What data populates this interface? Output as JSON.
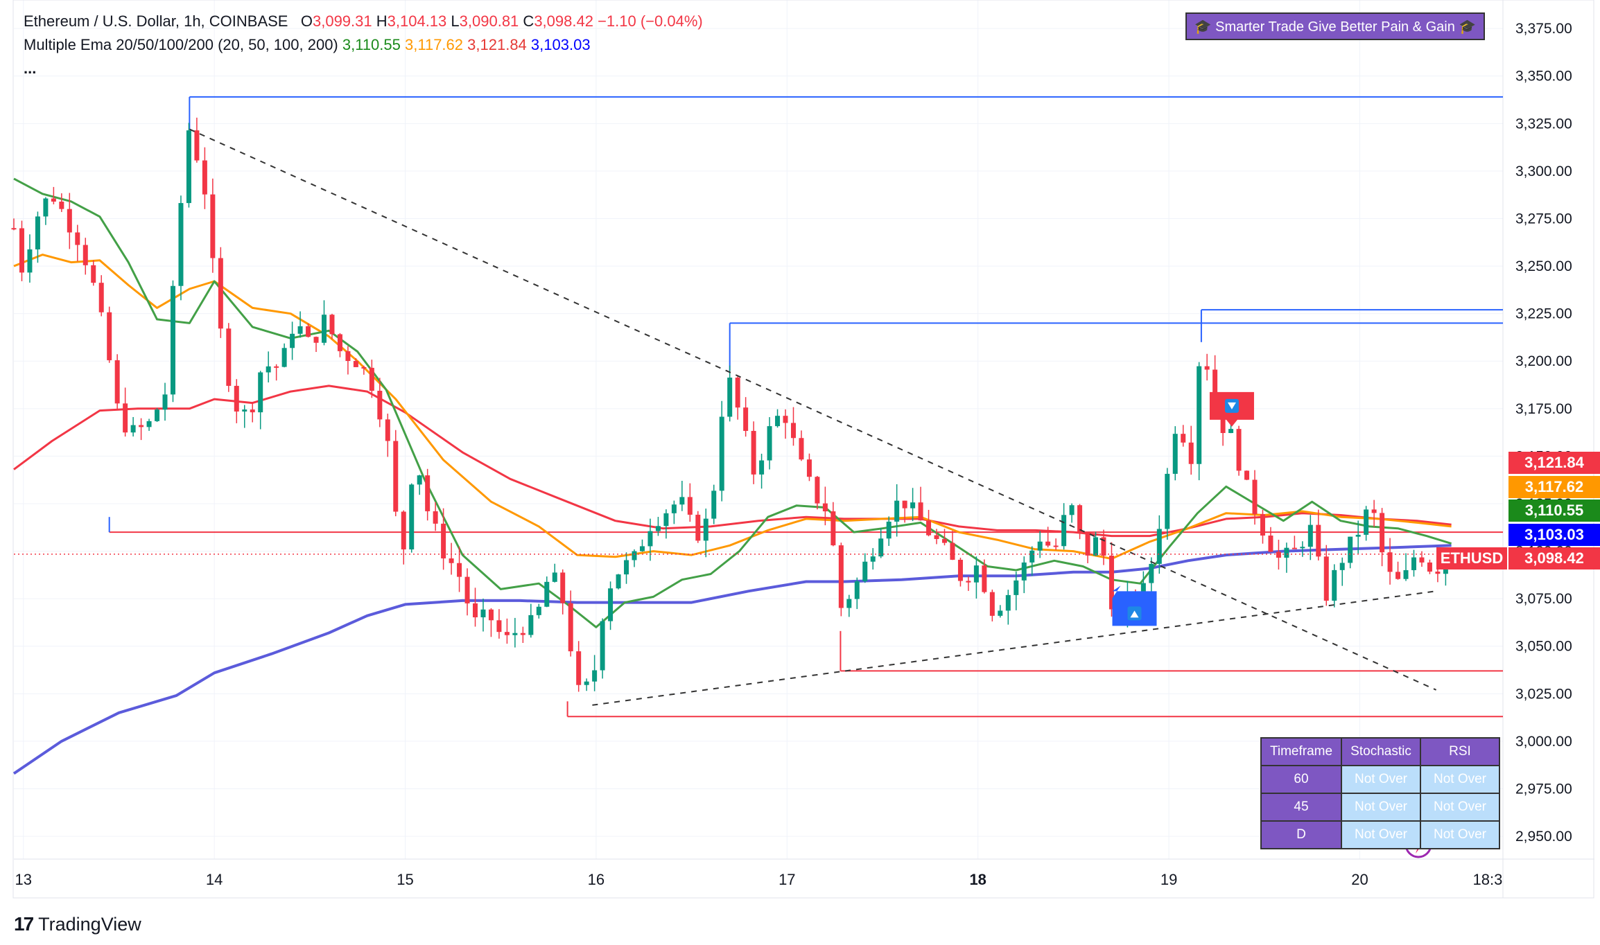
{
  "header": {
    "symbol": "Ethereum / U.S. Dollar, 1h, COINBASE",
    "o_label": "O",
    "o_val": "3,099.31",
    "h_label": "H",
    "h_val": "3,104.13",
    "l_label": "L",
    "l_val": "3,090.81",
    "c_label": "C",
    "c_val": "3,098.42",
    "change": "−1.10 (−0.04%)",
    "indicator": "Multiple Ema 20/50/100/200 (20, 50, 100, 200)",
    "ema20": "3,110.55",
    "ema50": "3,117.62",
    "ema100": "3,121.84",
    "ema200": "3,103.03",
    "more": "..."
  },
  "banner": {
    "text": "🎓 Smarter Trade Give Better Pain & Gain 🎓"
  },
  "price_tags": [
    {
      "label": "3,121.84",
      "color": "#f23645"
    },
    {
      "label": "3,117.62",
      "color": "#ff9800"
    },
    {
      "label": "3,110.55",
      "color": "#1b8a1b"
    },
    {
      "label": "3,103.03",
      "color": "#0000ff"
    },
    {
      "label": "ETHUSD",
      "value": "3,098.42",
      "color": "#f23645"
    }
  ],
  "table": {
    "headers": [
      "Timeframe",
      "Stochastic",
      "RSI"
    ],
    "rows": [
      {
        "tf": "60",
        "stoch": "Not Over",
        "rsi": "Not Over"
      },
      {
        "tf": "45",
        "stoch": "Not Over",
        "rsi": "Not Over"
      },
      {
        "tf": "D",
        "stoch": "Not Over",
        "rsi": "Not Over"
      }
    ]
  },
  "footer": {
    "brand": "TradingView",
    "logo": "17"
  },
  "colors": {
    "up": "#089981",
    "down": "#f23645",
    "ema20": "#43a047",
    "ema50": "#ff9800",
    "ema100": "#f23645",
    "ema200": "#5b5bdb",
    "hline_blue": "#2962ff",
    "hline_red": "#f23645"
  },
  "chart_data": {
    "type": "candlestick",
    "title": "Ethereum / U.S. Dollar, 1h, COINBASE",
    "ylim": [
      2938,
      3390
    ],
    "y_ticks": [
      2950,
      2975,
      3000,
      3025,
      3050,
      3075,
      3100,
      3125,
      3150,
      3175,
      3200,
      3225,
      3250,
      3275,
      3300,
      3325,
      3350,
      3375
    ],
    "y_tick_labels": [
      "2,950.00",
      "2,975.00",
      "3,000.00",
      "3,025.00",
      "3,050.00",
      "3,075.00",
      "3,100.00",
      "3,125.00",
      "3,150.00",
      "3,175.00",
      "3,200.00",
      "3,225.00",
      "3,250.00",
      "3,275.00",
      "3,300.00",
      "3,325.00",
      "3,350.00",
      "3,375.00"
    ],
    "x_range_days": [
      12.95,
      20.75
    ],
    "x_ticks": [
      13,
      14,
      15,
      16,
      17,
      18,
      19,
      20
    ],
    "x_tick_labels": [
      "13",
      "14",
      "15",
      "16",
      "17",
      "18",
      "19",
      "20"
    ],
    "x_tick_bold": [
      false,
      false,
      false,
      false,
      false,
      true,
      false,
      false
    ],
    "x_extra_label": {
      "day": 20.67,
      "label": "18:3"
    },
    "last_price": 3098.42,
    "hlines": [
      {
        "from": 13.87,
        "to": 20.75,
        "y": 3339,
        "color": "blue"
      },
      {
        "from": 16.7,
        "to": 20.75,
        "y": 3220,
        "color": "blue"
      },
      {
        "from": 19.17,
        "to": 20.75,
        "y": 3227,
        "color": "blue"
      },
      {
        "from": 13.45,
        "to": 20.75,
        "y": 3110,
        "color": "red"
      },
      {
        "from": 17.28,
        "to": 20.75,
        "y": 3037,
        "color": "red"
      },
      {
        "from": 15.85,
        "to": 20.75,
        "y": 3013,
        "color": "red"
      }
    ],
    "vlines": [
      {
        "day": 13.87,
        "y1": 3322,
        "y2": 3339
      },
      {
        "day": 16.7,
        "y1": 3195,
        "y2": 3220
      },
      {
        "day": 19.17,
        "y1": 3210,
        "y2": 3227
      },
      {
        "day": 13.45,
        "y1": 3110,
        "y2": 3118
      },
      {
        "day": 17.28,
        "y1": 3037,
        "y2": 3058
      },
      {
        "day": 15.85,
        "y1": 3013,
        "y2": 3021
      }
    ],
    "trendlines": [
      {
        "x1": 13.87,
        "y1": 3322,
        "x2": 20.4,
        "y2": 3027
      },
      {
        "x1": 15.98,
        "y1": 3019,
        "x2": 20.4,
        "y2": 3079
      }
    ],
    "signals": [
      {
        "type": "sell",
        "day": 19.33,
        "price": 3175
      },
      {
        "type": "buy",
        "day": 18.82,
        "price": 3068
      }
    ],
    "ema_series": [
      {
        "name": "EMA 20",
        "points": [
          [
            12.95,
            3296
          ],
          [
            13.1,
            3288
          ],
          [
            13.25,
            3284
          ],
          [
            13.4,
            3276
          ],
          [
            13.55,
            3252
          ],
          [
            13.7,
            3222
          ],
          [
            13.87,
            3220
          ],
          [
            14.0,
            3242
          ],
          [
            14.2,
            3218
          ],
          [
            14.4,
            3212
          ],
          [
            14.6,
            3216
          ],
          [
            14.75,
            3205
          ],
          [
            14.9,
            3185
          ],
          [
            15.1,
            3138
          ],
          [
            15.3,
            3098
          ],
          [
            15.5,
            3080
          ],
          [
            15.7,
            3083
          ],
          [
            15.85,
            3072
          ],
          [
            16.0,
            3060
          ],
          [
            16.15,
            3073
          ],
          [
            16.3,
            3076
          ],
          [
            16.45,
            3085
          ],
          [
            16.6,
            3088
          ],
          [
            16.75,
            3100
          ],
          [
            16.9,
            3118
          ],
          [
            17.05,
            3124
          ],
          [
            17.2,
            3123
          ],
          [
            17.35,
            3110
          ],
          [
            17.5,
            3112
          ],
          [
            17.7,
            3115
          ],
          [
            17.9,
            3102
          ],
          [
            18.05,
            3092
          ],
          [
            18.2,
            3090
          ],
          [
            18.4,
            3095
          ],
          [
            18.55,
            3092
          ],
          [
            18.7,
            3085
          ],
          [
            18.85,
            3083
          ],
          [
            19.0,
            3102
          ],
          [
            19.15,
            3120
          ],
          [
            19.3,
            3134
          ],
          [
            19.45,
            3125
          ],
          [
            19.6,
            3116
          ],
          [
            19.75,
            3126
          ],
          [
            19.9,
            3116
          ],
          [
            20.05,
            3113
          ],
          [
            20.2,
            3112
          ],
          [
            20.35,
            3108
          ],
          [
            20.48,
            3104
          ]
        ]
      },
      {
        "name": "EMA 50",
        "points": [
          [
            12.95,
            3250
          ],
          [
            13.1,
            3256
          ],
          [
            13.25,
            3252
          ],
          [
            13.4,
            3253
          ],
          [
            13.55,
            3240
          ],
          [
            13.7,
            3228
          ],
          [
            13.87,
            3238
          ],
          [
            14.0,
            3242
          ],
          [
            14.2,
            3228
          ],
          [
            14.4,
            3225
          ],
          [
            14.6,
            3213
          ],
          [
            14.75,
            3200
          ],
          [
            14.95,
            3180
          ],
          [
            15.2,
            3148
          ],
          [
            15.45,
            3126
          ],
          [
            15.7,
            3113
          ],
          [
            15.9,
            3098
          ],
          [
            16.1,
            3097
          ],
          [
            16.3,
            3100
          ],
          [
            16.5,
            3098
          ],
          [
            16.7,
            3103
          ],
          [
            16.9,
            3111
          ],
          [
            17.1,
            3117
          ],
          [
            17.3,
            3116
          ],
          [
            17.5,
            3117
          ],
          [
            17.7,
            3118
          ],
          [
            17.9,
            3110
          ],
          [
            18.1,
            3106
          ],
          [
            18.3,
            3101
          ],
          [
            18.5,
            3100
          ],
          [
            18.7,
            3096
          ],
          [
            18.9,
            3105
          ],
          [
            19.1,
            3112
          ],
          [
            19.3,
            3120
          ],
          [
            19.5,
            3119
          ],
          [
            19.7,
            3121
          ],
          [
            19.9,
            3118
          ],
          [
            20.1,
            3117
          ],
          [
            20.3,
            3115
          ],
          [
            20.48,
            3113
          ]
        ]
      },
      {
        "name": "EMA 100",
        "points": [
          [
            12.95,
            3143
          ],
          [
            13.15,
            3158
          ],
          [
            13.4,
            3174
          ],
          [
            13.6,
            3175
          ],
          [
            13.87,
            3175
          ],
          [
            14.0,
            3180
          ],
          [
            14.2,
            3178
          ],
          [
            14.4,
            3184
          ],
          [
            14.6,
            3187
          ],
          [
            14.8,
            3184
          ],
          [
            15.0,
            3173
          ],
          [
            15.3,
            3152
          ],
          [
            15.55,
            3138
          ],
          [
            15.8,
            3128
          ],
          [
            16.1,
            3116
          ],
          [
            16.35,
            3112
          ],
          [
            16.6,
            3113
          ],
          [
            16.85,
            3116
          ],
          [
            17.1,
            3118
          ],
          [
            17.3,
            3117
          ],
          [
            17.5,
            3117
          ],
          [
            17.7,
            3117
          ],
          [
            17.9,
            3113
          ],
          [
            18.1,
            3111
          ],
          [
            18.3,
            3111
          ],
          [
            18.5,
            3110
          ],
          [
            18.7,
            3108
          ],
          [
            18.9,
            3108
          ],
          [
            19.1,
            3112
          ],
          [
            19.3,
            3117
          ],
          [
            19.5,
            3118
          ],
          [
            19.7,
            3120
          ],
          [
            19.9,
            3119
          ],
          [
            20.1,
            3117
          ],
          [
            20.3,
            3116
          ],
          [
            20.48,
            3114
          ]
        ]
      },
      {
        "name": "EMA 200",
        "points": [
          [
            12.95,
            2983
          ],
          [
            13.2,
            3000
          ],
          [
            13.5,
            3015
          ],
          [
            13.8,
            3024
          ],
          [
            14.0,
            3036
          ],
          [
            14.3,
            3046
          ],
          [
            14.6,
            3057
          ],
          [
            14.8,
            3066
          ],
          [
            15.0,
            3072
          ],
          [
            15.3,
            3074
          ],
          [
            15.6,
            3074
          ],
          [
            15.9,
            3073
          ],
          [
            16.2,
            3073
          ],
          [
            16.5,
            3073
          ],
          [
            16.8,
            3079
          ],
          [
            17.1,
            3084
          ],
          [
            17.3,
            3084
          ],
          [
            17.6,
            3085
          ],
          [
            17.9,
            3087
          ],
          [
            18.2,
            3087
          ],
          [
            18.5,
            3089
          ],
          [
            18.7,
            3089
          ],
          [
            18.9,
            3091
          ],
          [
            19.1,
            3095
          ],
          [
            19.3,
            3098
          ],
          [
            19.6,
            3100
          ],
          [
            19.9,
            3101
          ],
          [
            20.2,
            3102
          ],
          [
            20.48,
            3103
          ]
        ]
      }
    ],
    "candle_anchors": [
      [
        12.95,
        3270
      ],
      [
        13.0,
        3245
      ],
      [
        13.05,
        3272
      ],
      [
        13.1,
        3282
      ],
      [
        13.15,
        3288
      ],
      [
        13.22,
        3276
      ],
      [
        13.3,
        3262
      ],
      [
        13.38,
        3235
      ],
      [
        13.45,
        3200
      ],
      [
        13.5,
        3170
      ],
      [
        13.58,
        3162
      ],
      [
        13.66,
        3167
      ],
      [
        13.75,
        3185
      ],
      [
        13.8,
        3260
      ],
      [
        13.87,
        3325
      ],
      [
        13.95,
        3290
      ],
      [
        14.02,
        3222
      ],
      [
        14.1,
        3178
      ],
      [
        14.18,
        3170
      ],
      [
        14.25,
        3198
      ],
      [
        14.35,
        3197
      ],
      [
        14.42,
        3222
      ],
      [
        14.5,
        3208
      ],
      [
        14.58,
        3222
      ],
      [
        14.66,
        3205
      ],
      [
        14.75,
        3200
      ],
      [
        14.82,
        3190
      ],
      [
        14.9,
        3163
      ],
      [
        14.98,
        3092
      ],
      [
        15.05,
        3154
      ],
      [
        15.12,
        3120
      ],
      [
        15.2,
        3100
      ],
      [
        15.28,
        3088
      ],
      [
        15.36,
        3062
      ],
      [
        15.44,
        3066
      ],
      [
        15.52,
        3052
      ],
      [
        15.6,
        3060
      ],
      [
        15.68,
        3062
      ],
      [
        15.76,
        3090
      ],
      [
        15.84,
        3070
      ],
      [
        15.9,
        3025
      ],
      [
        15.98,
        3030
      ],
      [
        16.05,
        3079
      ],
      [
        16.12,
        3090
      ],
      [
        16.2,
        3096
      ],
      [
        16.28,
        3114
      ],
      [
        16.36,
        3121
      ],
      [
        16.44,
        3127
      ],
      [
        16.52,
        3108
      ],
      [
        16.6,
        3118
      ],
      [
        16.68,
        3195
      ],
      [
        16.75,
        3172
      ],
      [
        16.83,
        3140
      ],
      [
        16.9,
        3162
      ],
      [
        16.98,
        3175
      ],
      [
        17.06,
        3148
      ],
      [
        17.14,
        3130
      ],
      [
        17.22,
        3120
      ],
      [
        17.28,
        3070
      ],
      [
        17.36,
        3082
      ],
      [
        17.44,
        3100
      ],
      [
        17.52,
        3118
      ],
      [
        17.6,
        3128
      ],
      [
        17.68,
        3118
      ],
      [
        17.76,
        3108
      ],
      [
        17.84,
        3098
      ],
      [
        17.92,
        3085
      ],
      [
        18.0,
        3093
      ],
      [
        18.08,
        3068
      ],
      [
        18.16,
        3078
      ],
      [
        18.24,
        3092
      ],
      [
        18.32,
        3108
      ],
      [
        18.4,
        3100
      ],
      [
        18.48,
        3126
      ],
      [
        18.56,
        3098
      ],
      [
        18.64,
        3108
      ],
      [
        18.72,
        3063
      ],
      [
        18.8,
        3075
      ],
      [
        18.88,
        3080
      ],
      [
        18.96,
        3120
      ],
      [
        19.04,
        3170
      ],
      [
        19.12,
        3150
      ],
      [
        19.17,
        3215
      ],
      [
        19.25,
        3170
      ],
      [
        19.33,
        3160
      ],
      [
        19.41,
        3132
      ],
      [
        19.5,
        3110
      ],
      [
        19.58,
        3095
      ],
      [
        19.66,
        3100
      ],
      [
        19.74,
        3112
      ],
      [
        19.82,
        3076
      ],
      [
        19.9,
        3095
      ],
      [
        19.98,
        3108
      ],
      [
        20.06,
        3125
      ],
      [
        20.14,
        3088
      ],
      [
        20.22,
        3082
      ],
      [
        20.3,
        3101
      ],
      [
        20.38,
        3090
      ],
      [
        20.46,
        3094
      ]
    ]
  }
}
